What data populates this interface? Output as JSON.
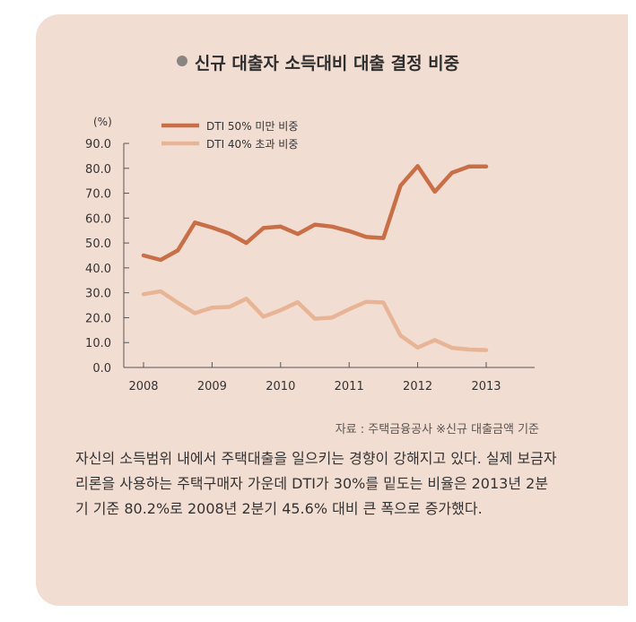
{
  "title": "신규 대출자 소득대비 대출 결정 비중",
  "source": "자료 : 주택금융공사 ※신규 대출금액 기준",
  "caption": "자신의 소득범위 내에서 주택대출을 일으키는 경향이 강해지고 있다. 실제 보금자리론을 사용하는 주택구매자 가운데 DTI가 30%를 밑도는 비율은 2013년 2분기 기준 80.2%로 2008년 2분기 45.6% 대비 큰 폭으로 증가했다.",
  "colors": {
    "panel": "#f2ddd2",
    "series1": "#c96f47",
    "series2": "#e7b596",
    "axis": "#555555",
    "bullet": "#8a8583"
  },
  "chart_data": {
    "type": "line",
    "ylabel": "(%)",
    "ylim": [
      0,
      90
    ],
    "yticks": [
      "0.0",
      "10.0",
      "20.0",
      "30.0",
      "40.0",
      "50.0",
      "60.0",
      "70.0",
      "80.0",
      "90.0"
    ],
    "xlim": [
      2008,
      2013.5
    ],
    "xticks": [
      "2008",
      "2009",
      "2010",
      "2011",
      "2012",
      "2013"
    ],
    "legend_position": "top-left",
    "grid": false,
    "series": [
      {
        "name": "DTI 50% 미만 비중",
        "points": [
          [
            2008.0,
            45.0
          ],
          [
            2008.25,
            43.2
          ],
          [
            2008.5,
            47.0
          ],
          [
            2008.75,
            58.2
          ],
          [
            2009.0,
            56.2
          ],
          [
            2009.25,
            53.8
          ],
          [
            2009.5,
            50.0
          ],
          [
            2009.75,
            56.0
          ],
          [
            2010.0,
            56.6
          ],
          [
            2010.25,
            53.6
          ],
          [
            2010.5,
            57.4
          ],
          [
            2010.75,
            56.6
          ],
          [
            2011.0,
            54.8
          ],
          [
            2011.25,
            52.4
          ],
          [
            2011.5,
            52.0
          ],
          [
            2011.75,
            73.0
          ],
          [
            2012.0,
            80.9
          ],
          [
            2012.25,
            70.6
          ],
          [
            2012.5,
            78.2
          ],
          [
            2012.75,
            80.7
          ],
          [
            2013.0,
            80.7
          ]
        ]
      },
      {
        "name": "DTI 40% 초과 비중",
        "points": [
          [
            2008.0,
            29.4
          ],
          [
            2008.25,
            30.6
          ],
          [
            2008.5,
            26.0
          ],
          [
            2008.75,
            21.8
          ],
          [
            2009.0,
            24.0
          ],
          [
            2009.25,
            24.3
          ],
          [
            2009.5,
            27.6
          ],
          [
            2009.75,
            20.4
          ],
          [
            2010.0,
            23.0
          ],
          [
            2010.25,
            26.2
          ],
          [
            2010.5,
            19.6
          ],
          [
            2010.75,
            20.0
          ],
          [
            2011.0,
            23.4
          ],
          [
            2011.25,
            26.4
          ],
          [
            2011.5,
            26.1
          ],
          [
            2011.75,
            12.8
          ],
          [
            2012.0,
            8.0
          ],
          [
            2012.25,
            11.0
          ],
          [
            2012.5,
            7.9
          ],
          [
            2012.75,
            7.2
          ],
          [
            2013.0,
            7.0
          ]
        ]
      }
    ]
  }
}
